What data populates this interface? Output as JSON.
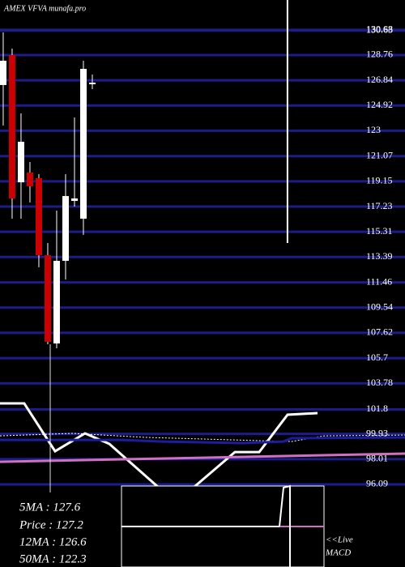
{
  "chart_data": {
    "type": "candlestick",
    "title": "AMEX  VFVA munafa.pro",
    "x": [
      0,
      1,
      2,
      3,
      4,
      5,
      6,
      7,
      8,
      9,
      10
    ],
    "open": [
      126.48,
      128.76,
      119.08,
      119.82,
      119.39,
      113.53,
      106.81,
      113.1,
      117.66,
      116.31,
      126.6
    ],
    "high": [
      130.49,
      129.25,
      124.32,
      120.62,
      119.7,
      114.46,
      116.92,
      119.7,
      124.01,
      128.33,
      127.28
    ],
    "low": [
      123.4,
      116.31,
      116.31,
      117.54,
      112.61,
      106.75,
      106.44,
      111.68,
      117.23,
      115.07,
      126.17
    ],
    "close": [
      128.33,
      117.85,
      122.16,
      118.77,
      113.53,
      106.94,
      113.1,
      118.03,
      117.85,
      127.71,
      126.66
    ],
    "up_color": "#ffffff",
    "down_color": "#cc0000",
    "xlim": [
      -0.36,
      45.09
    ],
    "ylim": [
      89.8,
      132.95
    ],
    "yticks": [
      130.68,
      130.63,
      128.76,
      126.84,
      124.92,
      123,
      121.07,
      119.15,
      117.23,
      115.31,
      113.39,
      111.46,
      109.54,
      107.62,
      105.7,
      103.78,
      101.8,
      99.93,
      98.01,
      96.09
    ],
    "grid": true,
    "grid_color": "#1c1c8a",
    "cursor_x": 31.9,
    "indicators": [
      {
        "color": "#ffffff",
        "x": [
          -0.36,
          2.36,
          5.82,
          9.18,
          11.91,
          17.36,
          21.45,
          26,
          28.73,
          31.91,
          35.27
        ],
        "values": [
          102.25,
          102.25,
          98.61,
          99.97,
          99.17,
          95.9,
          95.9,
          98.55,
          98.55,
          101.39,
          101.51
        ]
      },
      {
        "color": "#ffffff",
        "dashed": true,
        "x": [
          -0.36,
          7.82,
          16,
          32.36,
          36,
          45.09
        ],
        "values": [
          99.78,
          99.97,
          99.66,
          99.35,
          99.78,
          99.84
        ]
      },
      {
        "color": "#1c1ca0",
        "x": [
          -0.36,
          13.27,
          17.82,
          26.91,
          31.45,
          32.36,
          45.09
        ],
        "values": [
          99.47,
          99.47,
          99.35,
          99.23,
          99.35,
          99.6,
          99.66
        ]
      },
      {
        "color": "#d070c0",
        "x": [
          -0.36,
          45.09
        ],
        "values": [
          97.81,
          98.43
        ]
      }
    ]
  },
  "info_panel": {
    "lines": [
      "5MA : 127.6",
      "Price  : 127.2",
      "12MA : 126.6",
      "50MA : 122.3"
    ]
  },
  "macd_panel": {
    "labels": [
      "<<Live",
      "MACD"
    ]
  }
}
